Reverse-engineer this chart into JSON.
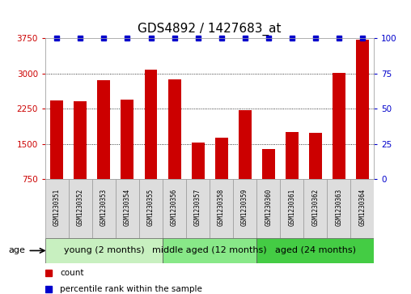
{
  "title": "GDS4892 / 1427683_at",
  "samples": [
    "GSM1230351",
    "GSM1230352",
    "GSM1230353",
    "GSM1230354",
    "GSM1230355",
    "GSM1230356",
    "GSM1230357",
    "GSM1230358",
    "GSM1230359",
    "GSM1230360",
    "GSM1230361",
    "GSM1230362",
    "GSM1230363",
    "GSM1230364"
  ],
  "counts": [
    2430,
    2410,
    2860,
    2450,
    3080,
    2870,
    1540,
    1640,
    2220,
    1390,
    1750,
    1740,
    3010,
    3720
  ],
  "percentiles": [
    100,
    100,
    100,
    100,
    100,
    100,
    100,
    100,
    100,
    100,
    100,
    100,
    100,
    100
  ],
  "bar_color": "#cc0000",
  "dot_color": "#0000cc",
  "ylim_left": [
    750,
    3750
  ],
  "ylim_right": [
    0,
    100
  ],
  "yticks_left": [
    750,
    1500,
    2250,
    3000,
    3750
  ],
  "yticks_right": [
    0,
    25,
    50,
    75,
    100
  ],
  "groups": [
    {
      "label": "young (2 months)",
      "start": 0,
      "end": 5,
      "color": "#c8f0c0"
    },
    {
      "label": "middle aged (12 months)",
      "start": 5,
      "end": 9,
      "color": "#88e888"
    },
    {
      "label": "aged (24 months)",
      "start": 9,
      "end": 14,
      "color": "#44cc44"
    }
  ],
  "bar_width": 0.55,
  "grid_color": "#000000",
  "bg_color": "#ffffff",
  "plot_bg": "#ffffff",
  "left_tick_color": "#cc0000",
  "right_tick_color": "#0000cc",
  "title_fontsize": 11,
  "tick_fontsize": 7.5,
  "label_fontsize": 8,
  "group_label_fontsize": 8,
  "age_label": "age"
}
